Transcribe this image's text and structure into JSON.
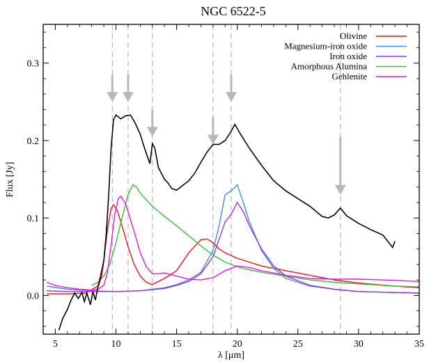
{
  "chart_data": {
    "type": "line",
    "title": "NGC 6522-5",
    "xlabel": "λ [μm]",
    "ylabel": "Flux [Jy]",
    "xlim": [
      4,
      35
    ],
    "ylim": [
      -0.05,
      0.35
    ],
    "xticks": [
      5,
      10,
      15,
      20,
      25,
      30,
      35
    ],
    "yticks": [
      0.0,
      0.1,
      0.2,
      0.3
    ],
    "ytick_labels": [
      "0.0",
      "0.1",
      "0.2",
      "0.3"
    ],
    "grid": false,
    "legend_position": "top-right",
    "reference_lines": [
      9.7,
      11.0,
      13.0,
      18.0,
      19.5,
      28.5
    ],
    "arrows": [
      9.7,
      11.0,
      13.0,
      18.0,
      19.5,
      28.5
    ],
    "observed": {
      "color": "#000000",
      "points": [
        [
          5.3,
          -0.045
        ],
        [
          5.6,
          -0.03
        ],
        [
          6.0,
          -0.018
        ],
        [
          6.3,
          -0.006
        ],
        [
          6.6,
          0.003
        ],
        [
          6.9,
          -0.004
        ],
        [
          7.2,
          0.004
        ],
        [
          7.4,
          -0.008
        ],
        [
          7.6,
          0.003
        ],
        [
          7.9,
          -0.012
        ],
        [
          8.1,
          0.005
        ],
        [
          8.3,
          -0.006
        ],
        [
          8.5,
          0.01
        ],
        [
          8.8,
          0.025
        ],
        [
          9.0,
          0.045
        ],
        [
          9.2,
          0.08
        ],
        [
          9.4,
          0.13
        ],
        [
          9.6,
          0.19
        ],
        [
          9.8,
          0.227
        ],
        [
          10.0,
          0.233
        ],
        [
          10.4,
          0.228
        ],
        [
          10.8,
          0.232
        ],
        [
          11.2,
          0.233
        ],
        [
          11.6,
          0.222
        ],
        [
          12.0,
          0.208
        ],
        [
          12.4,
          0.188
        ],
        [
          12.8,
          0.17
        ],
        [
          13.0,
          0.196
        ],
        [
          13.2,
          0.19
        ],
        [
          13.5,
          0.165
        ],
        [
          14.0,
          0.15
        ],
        [
          14.3,
          0.145
        ],
        [
          14.6,
          0.138
        ],
        [
          15.0,
          0.136
        ],
        [
          15.5,
          0.142
        ],
        [
          16.0,
          0.148
        ],
        [
          16.5,
          0.158
        ],
        [
          17.0,
          0.172
        ],
        [
          17.5,
          0.185
        ],
        [
          18.0,
          0.195
        ],
        [
          18.5,
          0.195
        ],
        [
          19.0,
          0.2
        ],
        [
          19.5,
          0.212
        ],
        [
          19.8,
          0.221
        ],
        [
          20.2,
          0.21
        ],
        [
          21.0,
          0.19
        ],
        [
          22.0,
          0.168
        ],
        [
          23.0,
          0.148
        ],
        [
          24.0,
          0.135
        ],
        [
          25.0,
          0.125
        ],
        [
          26.0,
          0.115
        ],
        [
          27.0,
          0.102
        ],
        [
          27.5,
          0.1
        ],
        [
          28.0,
          0.104
        ],
        [
          28.5,
          0.113
        ],
        [
          29.0,
          0.103
        ],
        [
          30.0,
          0.093
        ],
        [
          31.0,
          0.085
        ],
        [
          32.0,
          0.078
        ],
        [
          32.5,
          0.068
        ],
        [
          32.8,
          0.062
        ],
        [
          33.0,
          0.07
        ]
      ]
    },
    "series": [
      {
        "name": "Olivine",
        "color": "#ee1111",
        "points": [
          [
            4.3,
            0.002
          ],
          [
            6.0,
            0.002
          ],
          [
            7.5,
            0.003
          ],
          [
            8.5,
            0.012
          ],
          [
            9.0,
            0.045
          ],
          [
            9.3,
            0.085
          ],
          [
            9.6,
            0.112
          ],
          [
            9.8,
            0.117
          ],
          [
            10.1,
            0.11
          ],
          [
            10.5,
            0.09
          ],
          [
            11.0,
            0.063
          ],
          [
            11.5,
            0.04
          ],
          [
            12.0,
            0.025
          ],
          [
            12.5,
            0.017
          ],
          [
            13.0,
            0.014
          ],
          [
            13.5,
            0.018
          ],
          [
            14.0,
            0.022
          ],
          [
            15.0,
            0.032
          ],
          [
            16.0,
            0.055
          ],
          [
            17.0,
            0.072
          ],
          [
            17.5,
            0.073
          ],
          [
            18.0,
            0.068
          ],
          [
            18.5,
            0.06
          ],
          [
            19.0,
            0.055
          ],
          [
            20.0,
            0.048
          ],
          [
            21.0,
            0.043
          ],
          [
            22.0,
            0.038
          ],
          [
            24.0,
            0.032
          ],
          [
            26.0,
            0.026
          ],
          [
            28.0,
            0.02
          ],
          [
            30.0,
            0.016
          ],
          [
            33.0,
            0.012
          ],
          [
            35.0,
            0.01
          ]
        ]
      },
      {
        "name": "Magnesium-iron oxide",
        "color": "#3a8ee8",
        "points": [
          [
            4.3,
            0.012
          ],
          [
            6.0,
            0.008
          ],
          [
            8.0,
            0.006
          ],
          [
            10.0,
            0.005
          ],
          [
            12.0,
            0.006
          ],
          [
            14.0,
            0.01
          ],
          [
            15.0,
            0.014
          ],
          [
            16.0,
            0.02
          ],
          [
            17.0,
            0.03
          ],
          [
            18.0,
            0.058
          ],
          [
            18.5,
            0.09
          ],
          [
            19.0,
            0.13
          ],
          [
            19.5,
            0.135
          ],
          [
            20.0,
            0.143
          ],
          [
            20.5,
            0.12
          ],
          [
            21.0,
            0.095
          ],
          [
            22.0,
            0.058
          ],
          [
            23.0,
            0.035
          ],
          [
            24.0,
            0.022
          ],
          [
            26.0,
            0.012
          ],
          [
            28.0,
            0.008
          ],
          [
            30.0,
            0.005
          ],
          [
            35.0,
            0.003
          ]
        ]
      },
      {
        "name": "Iron oxide",
        "color": "#9b30e0",
        "points": [
          [
            4.3,
            0.006
          ],
          [
            6.0,
            0.005
          ],
          [
            8.0,
            0.005
          ],
          [
            10.0,
            0.005
          ],
          [
            12.0,
            0.006
          ],
          [
            14.0,
            0.009
          ],
          [
            15.0,
            0.013
          ],
          [
            16.0,
            0.018
          ],
          [
            17.0,
            0.028
          ],
          [
            18.0,
            0.05
          ],
          [
            19.0,
            0.095
          ],
          [
            19.5,
            0.105
          ],
          [
            20.0,
            0.12
          ],
          [
            20.5,
            0.108
          ],
          [
            21.0,
            0.09
          ],
          [
            22.0,
            0.06
          ],
          [
            23.0,
            0.038
          ],
          [
            24.0,
            0.025
          ],
          [
            26.0,
            0.013
          ],
          [
            28.0,
            0.008
          ],
          [
            30.0,
            0.005
          ],
          [
            35.0,
            0.003
          ]
        ]
      },
      {
        "name": "Amorphous Alumina",
        "color": "#33c233",
        "points": [
          [
            8.0,
            0.013
          ],
          [
            8.5,
            0.017
          ],
          [
            9.0,
            0.025
          ],
          [
            9.5,
            0.04
          ],
          [
            10.0,
            0.068
          ],
          [
            10.5,
            0.1
          ],
          [
            11.0,
            0.13
          ],
          [
            11.4,
            0.143
          ],
          [
            11.7,
            0.14
          ],
          [
            12.0,
            0.132
          ],
          [
            13.0,
            0.115
          ],
          [
            14.0,
            0.102
          ],
          [
            15.0,
            0.09
          ],
          [
            16.0,
            0.077
          ],
          [
            17.0,
            0.064
          ],
          [
            18.0,
            0.052
          ],
          [
            19.0,
            0.043
          ],
          [
            20.0,
            0.037
          ],
          [
            21.0,
            0.033
          ],
          [
            22.0,
            0.03
          ],
          [
            24.0,
            0.025
          ],
          [
            26.0,
            0.02
          ],
          [
            28.0,
            0.017
          ],
          [
            30.0,
            0.015
          ],
          [
            33.0,
            0.012
          ],
          [
            35.0,
            0.011
          ]
        ]
      },
      {
        "name": "Gehlenite",
        "color": "#ee11ee",
        "points": [
          [
            4.3,
            0.017
          ],
          [
            5.0,
            0.013
          ],
          [
            6.0,
            0.01
          ],
          [
            7.0,
            0.008
          ],
          [
            8.0,
            0.007
          ],
          [
            8.5,
            0.008
          ],
          [
            9.0,
            0.013
          ],
          [
            9.3,
            0.03
          ],
          [
            9.6,
            0.065
          ],
          [
            9.9,
            0.105
          ],
          [
            10.2,
            0.125
          ],
          [
            10.4,
            0.128
          ],
          [
            10.8,
            0.118
          ],
          [
            11.2,
            0.098
          ],
          [
            11.6,
            0.077
          ],
          [
            12.0,
            0.055
          ],
          [
            12.5,
            0.037
          ],
          [
            13.0,
            0.028
          ],
          [
            13.5,
            0.028
          ],
          [
            14.0,
            0.029
          ],
          [
            15.0,
            0.025
          ],
          [
            16.0,
            0.021
          ],
          [
            17.0,
            0.02
          ],
          [
            18.0,
            0.023
          ],
          [
            19.0,
            0.032
          ],
          [
            20.0,
            0.038
          ],
          [
            21.0,
            0.036
          ],
          [
            22.0,
            0.032
          ],
          [
            24.0,
            0.026
          ],
          [
            26.0,
            0.022
          ],
          [
            28.0,
            0.021
          ],
          [
            30.0,
            0.021
          ],
          [
            32.0,
            0.02
          ],
          [
            35.0,
            0.018
          ]
        ]
      }
    ]
  }
}
